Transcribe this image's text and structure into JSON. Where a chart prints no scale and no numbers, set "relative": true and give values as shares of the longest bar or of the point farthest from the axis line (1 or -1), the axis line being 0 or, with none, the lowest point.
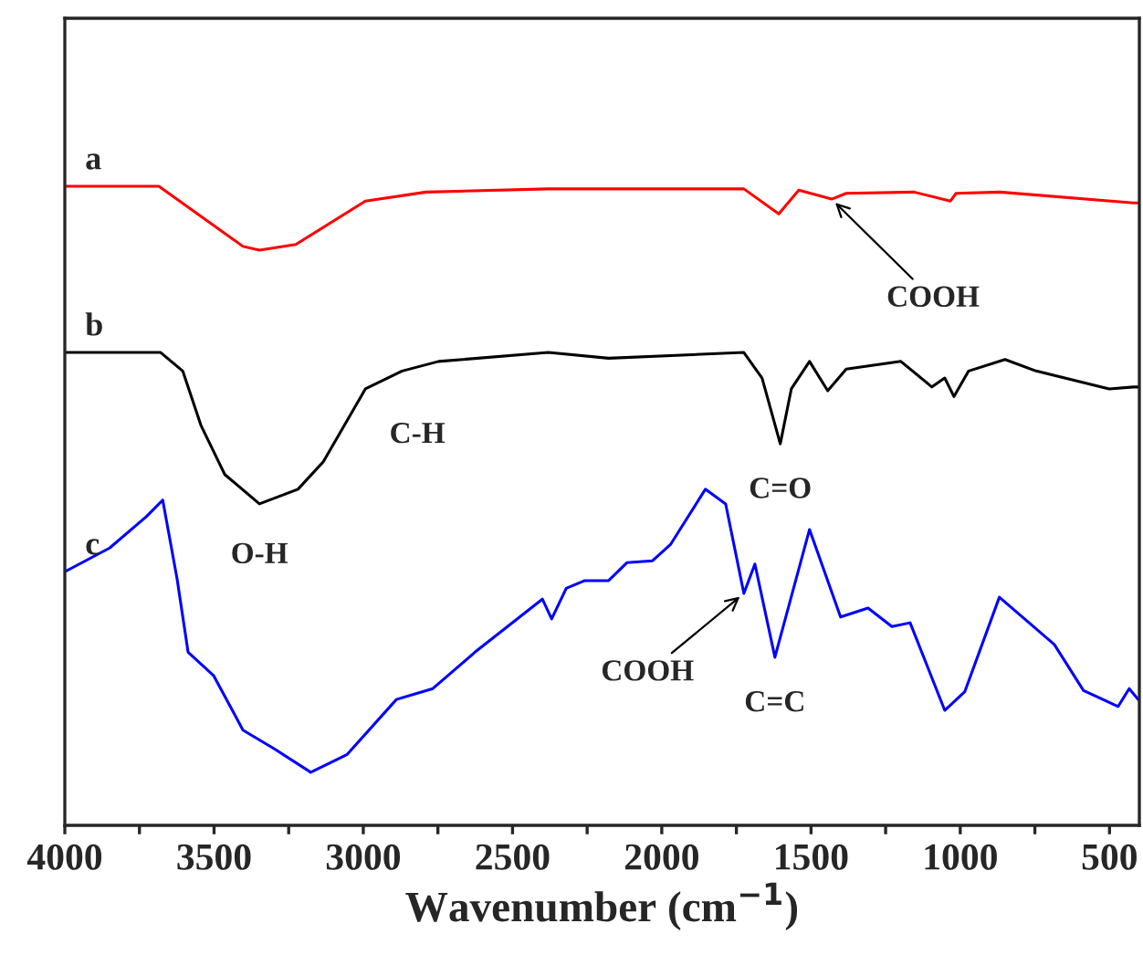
{
  "chart_data": {
    "type": "line",
    "relative": true,
    "xlabel": "Wavenumber (cm$^{−1}$)",
    "xlim": [
      4000,
      400
    ],
    "xticks": [
      4000,
      {
        "value": 3750,
        "label": null
      },
      3500,
      {
        "value": 3250,
        "label": null
      },
      3000,
      {
        "value": 2750,
        "label": null
      },
      2500,
      {
        "value": 2250,
        "label": null
      },
      2000,
      {
        "value": 1750,
        "label": null
      },
      1500,
      {
        "value": 1250,
        "label": null
      },
      1000,
      {
        "value": 750,
        "label": null
      },
      500
    ],
    "tick_labels": "x",
    "grid": false,
    "marker": "none",
    "line_style": "solid",
    "series": [
      {
        "name": "a",
        "color": "#ff0000",
        "x": [
          4000,
          3685,
          3403,
          3348,
          3226,
          2993,
          2790,
          2380,
          1725,
          1608,
          1541,
          1431,
          1382,
          1155,
          1033,
          1014,
          867,
          420,
          400
        ],
        "values": [
          1.0,
          1.0,
          0.906,
          0.9,
          0.909,
          0.977,
          0.991,
          0.996,
          0.996,
          0.957,
          0.994,
          0.98,
          0.989,
          0.991,
          0.977,
          0.989,
          0.991,
          0.974,
          0.974
        ]
      },
      {
        "name": "b",
        "color": "#000000",
        "x": [
          4000,
          3679,
          3605,
          3544,
          3464,
          3348,
          3219,
          3134,
          2993,
          2870,
          2748,
          2380,
          2178,
          1725,
          1664,
          1603,
          1566,
          1505,
          1444,
          1382,
          1199,
          1095,
          1052,
          1021,
          972,
          850,
          746,
          501,
          420,
          400
        ],
        "values": [
          0.74,
          0.74,
          0.711,
          0.626,
          0.549,
          0.503,
          0.526,
          0.569,
          0.683,
          0.711,
          0.726,
          0.74,
          0.731,
          0.74,
          0.7,
          0.597,
          0.683,
          0.726,
          0.68,
          0.714,
          0.726,
          0.686,
          0.7,
          0.671,
          0.711,
          0.729,
          0.711,
          0.683,
          0.686,
          0.686
        ]
      },
      {
        "name": "c",
        "color": "#0000ff",
        "x": [
          4000,
          3850,
          3727,
          3672,
          3624,
          3587,
          3501,
          3403,
          3299,
          3176,
          3054,
          2889,
          2767,
          2626,
          2400,
          2369,
          2320,
          2258,
          2178,
          2117,
          2031,
          1970,
          1854,
          1786,
          1725,
          1688,
          1621,
          1505,
          1401,
          1309,
          1229,
          1168,
          1052,
          985,
          869,
          685,
          587,
          471,
          434,
          404
        ],
        "values": [
          0.397,
          0.434,
          0.483,
          0.509,
          0.386,
          0.271,
          0.234,
          0.149,
          0.12,
          0.083,
          0.111,
          0.197,
          0.214,
          0.271,
          0.354,
          0.323,
          0.371,
          0.383,
          0.383,
          0.411,
          0.414,
          0.44,
          0.526,
          0.503,
          0.363,
          0.409,
          0.263,
          0.463,
          0.326,
          0.34,
          0.311,
          0.317,
          0.18,
          0.209,
          0.357,
          0.283,
          0.211,
          0.186,
          0.214,
          0.197
        ]
      }
    ],
    "annotations": [
      {
        "text": "COOH",
        "x": 1431,
        "y": 0.98
      },
      {
        "text": "C-H",
        "x": 2870,
        "y": 0.711
      },
      {
        "text": "O-H",
        "x": 3348,
        "y": 0.503
      },
      {
        "text": "C=O",
        "x": 1603,
        "y": 0.597
      },
      {
        "text": "COOH",
        "x": 1725,
        "y": 0.363
      },
      {
        "text": "C=C",
        "x": 1621,
        "y": 0.263
      }
    ]
  }
}
